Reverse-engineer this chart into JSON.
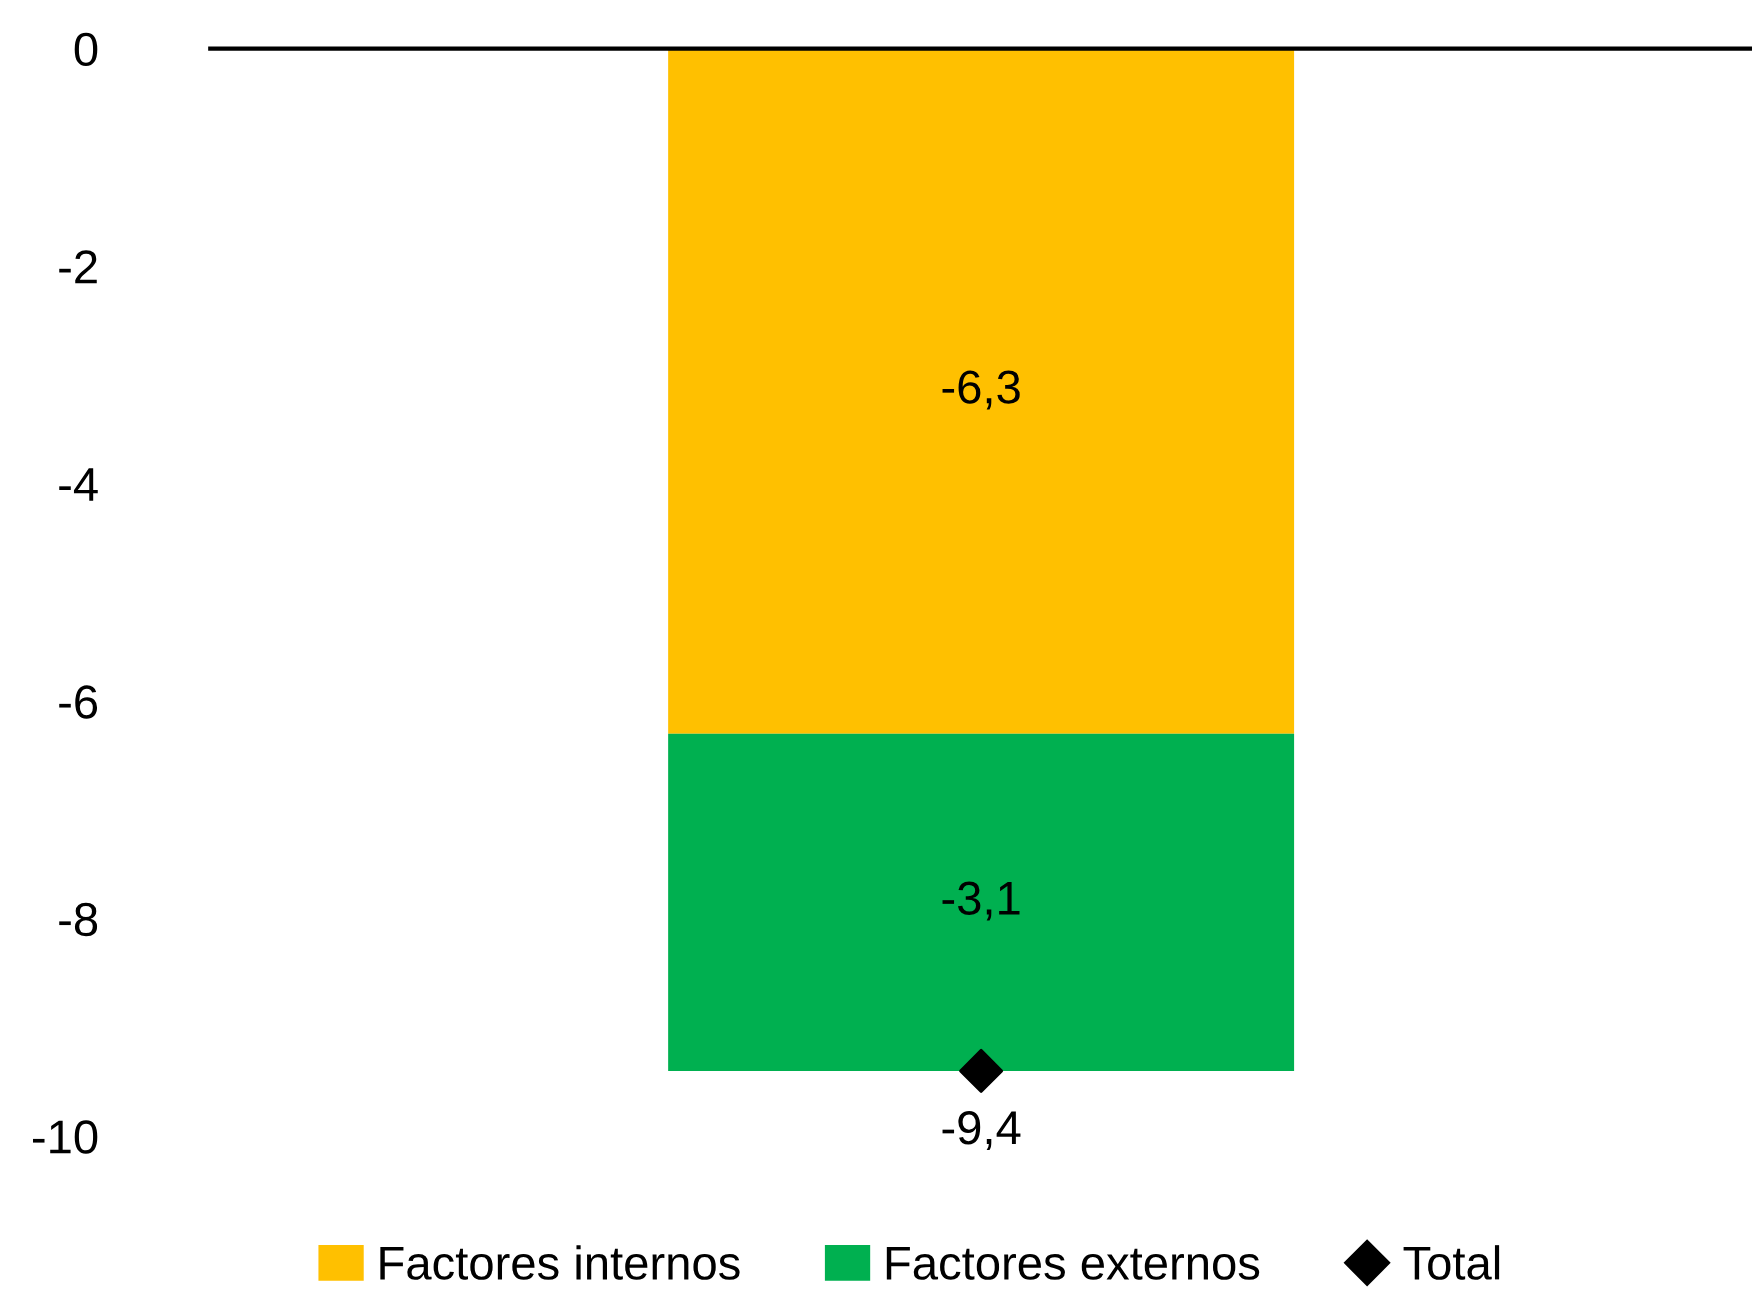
{
  "chart_data": {
    "type": "bar",
    "stacked": true,
    "categories": [
      null
    ],
    "series": [
      {
        "name": "Factores internos",
        "color": "#ffc000",
        "values": [
          -6.3
        ],
        "value_labels": [
          "-6,3"
        ]
      },
      {
        "name": "Factores externos",
        "color": "#00b050",
        "values": [
          -3.1
        ],
        "value_labels": [
          "-3,1"
        ]
      },
      {
        "name": "Total",
        "type": "scatter",
        "color": "#000000",
        "marker": "diamond",
        "values": [
          -9.4
        ],
        "value_labels": [
          "-9,4"
        ]
      }
    ],
    "ylim": [
      -10,
      0
    ],
    "yticks": [
      0,
      -2,
      -4,
      -6,
      -8,
      -10
    ],
    "grid": false,
    "legend": "bottom",
    "tick_labels": "y"
  }
}
